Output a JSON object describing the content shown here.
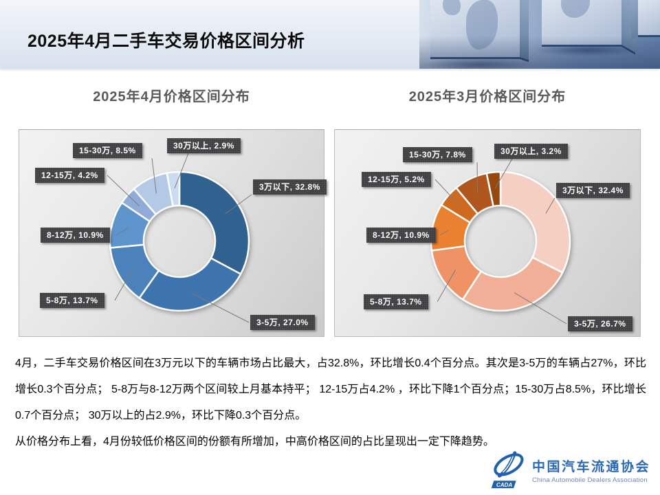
{
  "header": {
    "title": "2025年4月二手车交易价格区间分析"
  },
  "chart_data": [
    {
      "type": "pie",
      "variant": "donut",
      "title": "2025年4月价格区间分布",
      "categories": [
        "3万以下",
        "3-5万",
        "5-8万",
        "8-12万",
        "12-15万",
        "15-30万",
        "30万以上"
      ],
      "values": [
        32.8,
        27.0,
        13.7,
        10.9,
        4.2,
        8.5,
        2.9
      ],
      "colors": [
        "#31618F",
        "#3E74AE",
        "#4C82BB",
        "#5E94CC",
        "#8FACD9",
        "#B3C9E6",
        "#CADCF1"
      ],
      "label_format": "{category}, {value}%",
      "label_box_color": "#3A3A3C",
      "legend": "none",
      "start_angle": 0,
      "direction": "clockwise"
    },
    {
      "type": "pie",
      "variant": "donut",
      "title": "2025年3月价格区间分布",
      "categories": [
        "3万以下",
        "3-5万",
        "5-8万",
        "8-12万",
        "12-15万",
        "15-30万",
        "30万以上"
      ],
      "values": [
        32.4,
        26.7,
        13.7,
        10.9,
        5.2,
        7.8,
        3.2
      ],
      "colors": [
        "#F6CFC3",
        "#F2AF97",
        "#EF9366",
        "#EA8130",
        "#CD6A1F",
        "#AE561E",
        "#96480F"
      ],
      "label_format": "{category}, {value}%",
      "label_box_color": "#3A3A3C",
      "legend": "none",
      "start_angle": 0,
      "direction": "clockwise"
    }
  ],
  "analysis": {
    "paragraphs": [
      "4月，二手车交易价格区间在3万元以下的车辆市场占比最大，占32.8%，环比增长0.4个百分点。其次是3-5万的车辆占27%，环比增长0.3个百分点； 5-8万与8-12万两个区间较上月基本持平； 12-15万占4.2% ，环比下降1个百分点；15-30万占8.5%，环比增长0.7个百分点； 30万以上的占2.9%，环比下降0.3个百分点。",
      "从价格分布上看，4月份较低价格区间的份额有所增加，中高价格区间的占比呈现出一定下降趋势。"
    ]
  },
  "logo": {
    "cn": "中国汽车流通协会",
    "en": "China Automobile Dealers Association",
    "acronym": "CADA",
    "color": "#2A69B3"
  }
}
